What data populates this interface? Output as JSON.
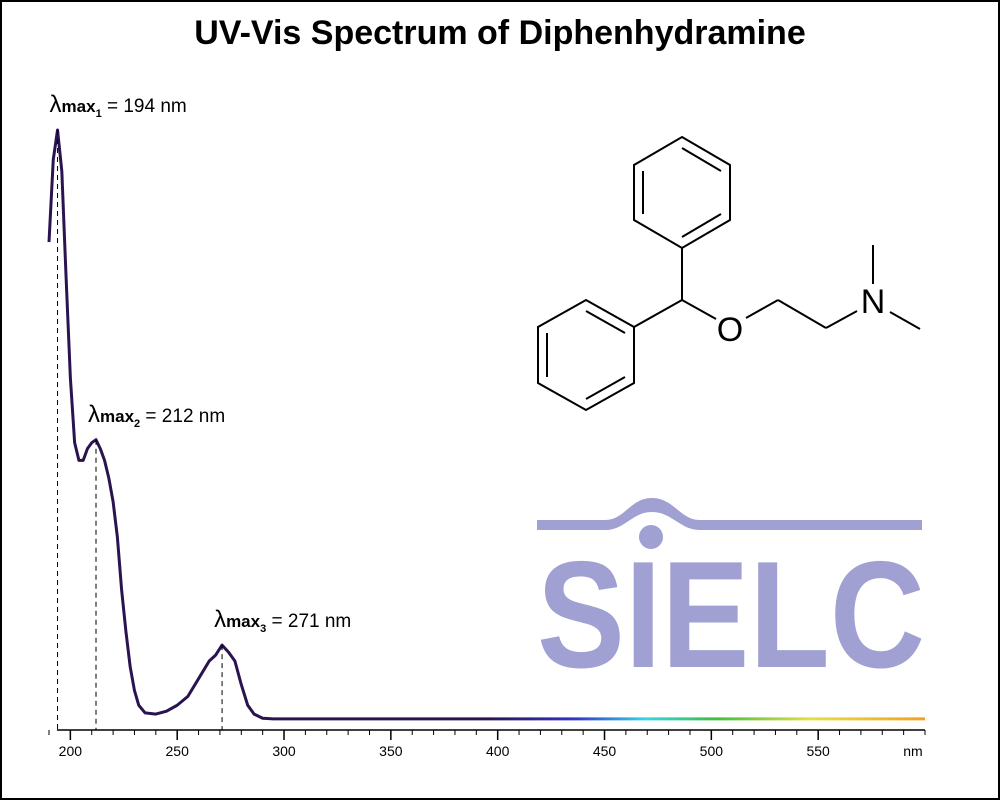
{
  "chart_data": {
    "type": "line",
    "title": "UV-Vis Spectrum of Diphenhydramine",
    "x_label": "nm",
    "x": [
      190,
      192,
      194,
      196,
      198,
      200,
      202,
      204,
      206,
      208,
      210,
      212,
      214,
      216,
      218,
      220,
      222,
      224,
      226,
      228,
      230,
      232,
      235,
      240,
      245,
      250,
      255,
      260,
      265,
      268,
      271,
      274,
      277,
      280,
      283,
      286,
      290,
      295,
      300,
      350,
      400,
      450,
      500,
      550,
      600
    ],
    "values": [
      0.81,
      0.95,
      1.0,
      0.93,
      0.75,
      0.58,
      0.47,
      0.44,
      0.44,
      0.46,
      0.47,
      0.475,
      0.46,
      0.44,
      0.41,
      0.37,
      0.31,
      0.22,
      0.15,
      0.09,
      0.05,
      0.025,
      0.012,
      0.01,
      0.015,
      0.025,
      0.04,
      0.07,
      0.1,
      0.11,
      0.127,
      0.115,
      0.1,
      0.06,
      0.025,
      0.01,
      0.003,
      0.002,
      0.002,
      0.002,
      0.002,
      0.002,
      0.002,
      0.002,
      0.002
    ],
    "color": "#2a1450",
    "xlim": [
      190,
      600
    ],
    "ylim": [
      0,
      1
    ],
    "xticks": [
      200,
      250,
      300,
      350,
      400,
      450,
      500,
      550
    ],
    "minor_tick_step": 10,
    "annotations": [
      {
        "x": 194,
        "symbol": "λ",
        "sub": "max",
        "index": "1",
        "text": " = 194 nm"
      },
      {
        "x": 212,
        "symbol": "λ",
        "sub": "max",
        "index": "2",
        "text": " = 212 nm"
      },
      {
        "x": 271,
        "symbol": "λ",
        "sub": "max",
        "index": "3",
        "text": " = 271 nm"
      }
    ]
  },
  "molecule": {
    "atoms": [
      "O",
      "N"
    ]
  },
  "watermark": "SIELC"
}
